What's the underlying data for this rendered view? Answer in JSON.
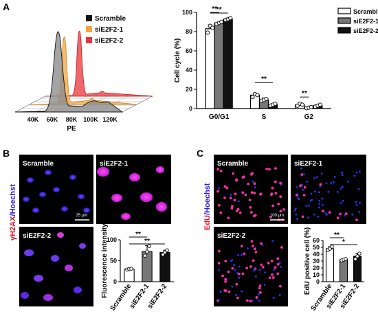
{
  "panels": {
    "A": {
      "label": "A",
      "flow": {
        "xaxis_label": "PE",
        "xticks": [
          "40K",
          "60K",
          "80K",
          "100K",
          "120K"
        ],
        "legend": [
          {
            "name": "Scramble",
            "color": "#111111"
          },
          {
            "name": "siE2F2-1",
            "color": "#f0a640"
          },
          {
            "name": "siE2F2-2",
            "color": "#e8363a"
          }
        ]
      }
    },
    "B": {
      "label": "B",
      "ylabel_red": "γH2AX",
      "ylabel_blue": "/Hoechst",
      "tiles": [
        "Scramble",
        "siE2F2-1",
        "siE2F2-2"
      ],
      "scalebar": "25 μm"
    },
    "C": {
      "label": "C",
      "ylabel_red": "EdU",
      "ylabel_blue": "/Hoechst",
      "tiles": [
        "Scramble",
        "siE2F2-1",
        "siE2F2-2"
      ],
      "scalebar": "100 μm"
    }
  },
  "chart_data": [
    {
      "id": "cell_cycle",
      "type": "bar",
      "ylabel": "Cell cycle (%)",
      "categories": [
        "G0/G1",
        "S",
        "G2"
      ],
      "ylim": [
        0,
        100
      ],
      "yticks": [
        0,
        20,
        40,
        60,
        80,
        100
      ],
      "legend_position": "top-right",
      "series": [
        {
          "name": "Scramble",
          "color": "#ffffff",
          "values": [
            83,
            14,
            4
          ],
          "err": [
            4,
            2,
            2
          ],
          "points": [
            [
              79,
              86,
              84
            ],
            [
              12,
              15,
              14
            ],
            [
              3,
              5,
              4
            ]
          ]
        },
        {
          "name": "siE2F2-1",
          "color": "#777777",
          "values": [
            89,
            9,
            1
          ],
          "err": [
            1,
            2,
            0.5
          ],
          "points": [
            [
              88,
              89,
              90
            ],
            [
              8,
              9,
              10
            ],
            [
              0.5,
              1,
              1.5
            ]
          ]
        },
        {
          "name": "siE2F2-2",
          "color": "#111111",
          "values": [
            93,
            4,
            3
          ],
          "err": [
            1,
            1,
            1
          ],
          "points": [
            [
              92,
              93,
              94
            ],
            [
              3,
              4,
              5
            ],
            [
              2,
              3,
              4
            ]
          ]
        }
      ],
      "significance": [
        {
          "from": [
            0,
            0
          ],
          "to": [
            0,
            1
          ],
          "label": "**"
        },
        {
          "from": [
            0,
            0
          ],
          "to": [
            0,
            2
          ],
          "label": "**"
        },
        {
          "from": [
            1,
            0
          ],
          "to": [
            1,
            2
          ],
          "label": "**"
        },
        {
          "from": [
            2,
            0
          ],
          "to": [
            2,
            1
          ],
          "label": "**"
        }
      ]
    },
    {
      "id": "fluorescence",
      "type": "bar",
      "ylabel": "Fluorescence intensity",
      "categories": [
        "Scramble",
        "siE2F2-1",
        "siE2F2-2"
      ],
      "colors": [
        "#ffffff",
        "#777777",
        "#111111"
      ],
      "ylim": [
        0,
        100
      ],
      "yticks": [
        0,
        50,
        100
      ],
      "values": [
        30,
        72,
        70
      ],
      "err": [
        1,
        14,
        5
      ],
      "points": [
        [
          29,
          30,
          31
        ],
        [
          62,
          72,
          85
        ],
        [
          65,
          70,
          75
        ]
      ],
      "significance": [
        {
          "from": 0,
          "to": 1,
          "label": "**"
        },
        {
          "from": 0,
          "to": 2,
          "label": "**"
        }
      ]
    },
    {
      "id": "edu",
      "type": "bar",
      "ylabel": "EdU positive cell (%)",
      "categories": [
        "Scramble",
        "siE2F2-1",
        "siE2F2-2"
      ],
      "colors": [
        "#ffffff",
        "#777777",
        "#111111"
      ],
      "ylim": [
        0,
        60
      ],
      "yticks": [
        0,
        10,
        20,
        30,
        40,
        50,
        60
      ],
      "values": [
        48,
        32,
        37
      ],
      "err": [
        3,
        1,
        4
      ],
      "points": [
        [
          46,
          48,
          51
        ],
        [
          31,
          32,
          33
        ],
        [
          33,
          37,
          41
        ]
      ],
      "significance": [
        {
          "from": 0,
          "to": 1,
          "label": "**"
        },
        {
          "from": 0,
          "to": 2,
          "label": "*"
        }
      ]
    }
  ]
}
